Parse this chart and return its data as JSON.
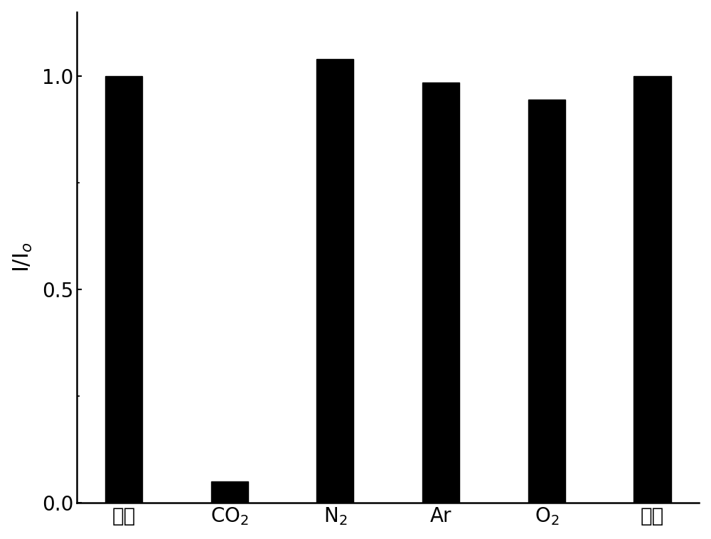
{
  "categories_display": [
    "空白",
    "CO$_2$",
    "N$_2$",
    "Ar",
    "O$_2$",
    "空气"
  ],
  "values": [
    1.0,
    0.05,
    1.04,
    0.985,
    0.945,
    1.0
  ],
  "bar_color": "#000000",
  "ylim": [
    0.0,
    1.15
  ],
  "yticks": [
    0.0,
    0.5,
    1.0
  ],
  "bar_width": 0.35,
  "background_color": "#ffffff",
  "ylabel_fontsize": 22,
  "tick_fontsize": 20,
  "xlabel_fontsize": 20
}
